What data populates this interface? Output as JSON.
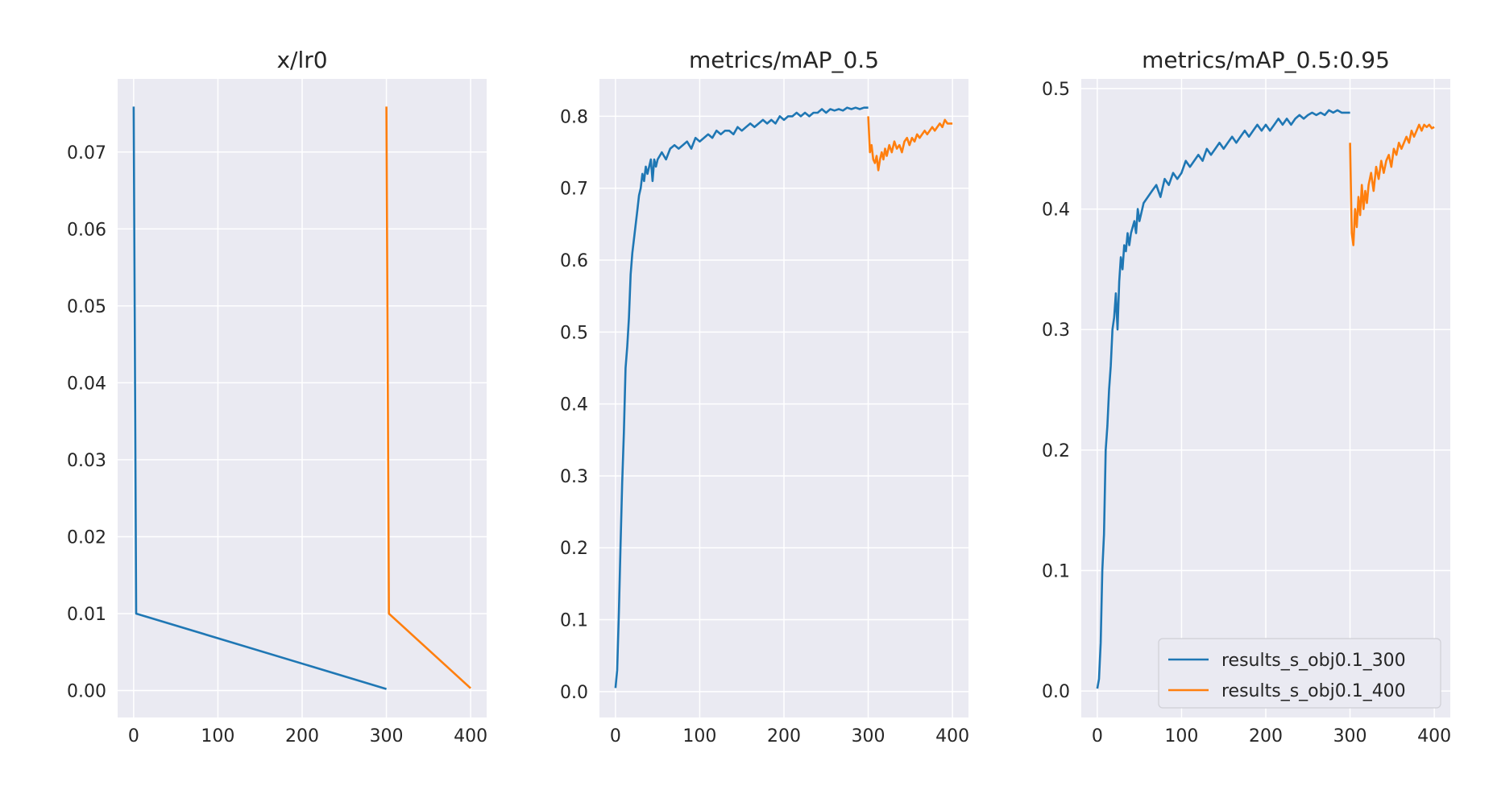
{
  "chart_data": [
    {
      "type": "line",
      "title": "x/lr0",
      "xlabel": "",
      "ylabel": "",
      "xlim": [
        -19,
        419
      ],
      "ylim": [
        -0.0035,
        0.0795
      ],
      "xticks": [
        0,
        100,
        200,
        300,
        400
      ],
      "yticks": [
        0.0,
        0.01,
        0.02,
        0.03,
        0.04,
        0.05,
        0.06,
        0.07
      ],
      "ytick_labels": [
        "0.00",
        "0.01",
        "0.02",
        "0.03",
        "0.04",
        "0.05",
        "0.06",
        "0.07"
      ],
      "grid": true,
      "legend": false,
      "series": [
        {
          "name": "results_s_obj0.1_300",
          "color": "#1f77b4",
          "x": [
            0,
            3,
            300
          ],
          "y": [
            0.0759,
            0.01,
            0.0002
          ]
        },
        {
          "name": "results_s_obj0.1_400",
          "color": "#ff7f0e",
          "x": [
            300,
            303,
            400
          ],
          "y": [
            0.0759,
            0.01,
            0.0003
          ]
        }
      ]
    },
    {
      "type": "line",
      "title": "metrics/mAP_0.5",
      "xlabel": "",
      "ylabel": "",
      "xlim": [
        -19,
        419
      ],
      "ylim": [
        -0.036,
        0.852
      ],
      "xticks": [
        0,
        100,
        200,
        300,
        400
      ],
      "yticks": [
        0.0,
        0.1,
        0.2,
        0.3,
        0.4,
        0.5,
        0.6,
        0.7,
        0.8
      ],
      "ytick_labels": [
        "0.0",
        "0.1",
        "0.2",
        "0.3",
        "0.4",
        "0.5",
        "0.6",
        "0.7",
        "0.8"
      ],
      "grid": true,
      "legend": false,
      "series": [
        {
          "name": "results_s_obj0.1_300",
          "color": "#1f77b4",
          "x": [
            0,
            2,
            4,
            6,
            8,
            10,
            12,
            14,
            16,
            18,
            20,
            22,
            24,
            26,
            28,
            30,
            32,
            34,
            36,
            38,
            40,
            42,
            44,
            46,
            48,
            50,
            55,
            60,
            65,
            70,
            75,
            80,
            85,
            90,
            95,
            100,
            105,
            110,
            115,
            120,
            125,
            130,
            135,
            140,
            145,
            150,
            155,
            160,
            165,
            170,
            175,
            180,
            185,
            190,
            195,
            200,
            205,
            210,
            215,
            220,
            225,
            230,
            235,
            240,
            245,
            250,
            255,
            260,
            265,
            270,
            275,
            280,
            285,
            290,
            295,
            300
          ],
          "y": [
            0.005,
            0.03,
            0.11,
            0.2,
            0.29,
            0.36,
            0.45,
            0.48,
            0.52,
            0.58,
            0.61,
            0.63,
            0.65,
            0.67,
            0.69,
            0.7,
            0.72,
            0.71,
            0.73,
            0.72,
            0.73,
            0.74,
            0.71,
            0.74,
            0.73,
            0.74,
            0.75,
            0.74,
            0.755,
            0.76,
            0.755,
            0.76,
            0.765,
            0.755,
            0.77,
            0.765,
            0.77,
            0.775,
            0.77,
            0.78,
            0.775,
            0.78,
            0.78,
            0.775,
            0.785,
            0.78,
            0.785,
            0.79,
            0.785,
            0.79,
            0.795,
            0.79,
            0.795,
            0.79,
            0.8,
            0.795,
            0.8,
            0.8,
            0.805,
            0.8,
            0.805,
            0.8,
            0.805,
            0.805,
            0.81,
            0.805,
            0.81,
            0.808,
            0.81,
            0.808,
            0.812,
            0.81,
            0.812,
            0.81,
            0.812,
            0.812
          ]
        },
        {
          "name": "results_s_obj0.1_400",
          "color": "#ff7f0e",
          "x": [
            300,
            302,
            304,
            306,
            308,
            310,
            312,
            314,
            316,
            318,
            320,
            322,
            325,
            328,
            331,
            334,
            337,
            340,
            343,
            346,
            349,
            352,
            355,
            358,
            361,
            364,
            367,
            370,
            373,
            376,
            379,
            382,
            385,
            388,
            391,
            394,
            397,
            400
          ],
          "y": [
            0.8,
            0.75,
            0.76,
            0.74,
            0.735,
            0.745,
            0.725,
            0.74,
            0.75,
            0.74,
            0.755,
            0.745,
            0.76,
            0.75,
            0.765,
            0.755,
            0.76,
            0.75,
            0.765,
            0.77,
            0.76,
            0.77,
            0.765,
            0.775,
            0.77,
            0.775,
            0.78,
            0.775,
            0.78,
            0.785,
            0.78,
            0.785,
            0.79,
            0.785,
            0.795,
            0.79,
            0.79,
            0.79
          ]
        }
      ]
    },
    {
      "type": "line",
      "title": "metrics/mAP_0.5:0.95",
      "xlabel": "",
      "ylabel": "",
      "xlim": [
        -19,
        419
      ],
      "ylim": [
        -0.022,
        0.508
      ],
      "xticks": [
        0,
        100,
        200,
        300,
        400
      ],
      "yticks": [
        0.0,
        0.1,
        0.2,
        0.3,
        0.4,
        0.5
      ],
      "ytick_labels": [
        "0.0",
        "0.1",
        "0.2",
        "0.3",
        "0.4",
        "0.5"
      ],
      "grid": true,
      "legend": true,
      "legend_loc": "lower right",
      "series": [
        {
          "name": "results_s_obj0.1_300",
          "color": "#1f77b4",
          "x": [
            0,
            2,
            4,
            6,
            8,
            10,
            12,
            14,
            16,
            18,
            20,
            22,
            24,
            26,
            28,
            30,
            32,
            34,
            36,
            38,
            40,
            42,
            44,
            46,
            48,
            50,
            55,
            60,
            65,
            70,
            75,
            80,
            85,
            90,
            95,
            100,
            105,
            110,
            115,
            120,
            125,
            130,
            135,
            140,
            145,
            150,
            155,
            160,
            165,
            170,
            175,
            180,
            185,
            190,
            195,
            200,
            205,
            210,
            215,
            220,
            225,
            230,
            235,
            240,
            245,
            250,
            255,
            260,
            265,
            270,
            275,
            280,
            285,
            290,
            295,
            300
          ],
          "y": [
            0.002,
            0.01,
            0.04,
            0.1,
            0.13,
            0.2,
            0.22,
            0.25,
            0.27,
            0.3,
            0.31,
            0.33,
            0.3,
            0.34,
            0.36,
            0.35,
            0.37,
            0.365,
            0.38,
            0.37,
            0.38,
            0.385,
            0.39,
            0.38,
            0.4,
            0.39,
            0.405,
            0.41,
            0.415,
            0.42,
            0.41,
            0.425,
            0.42,
            0.43,
            0.425,
            0.43,
            0.44,
            0.435,
            0.44,
            0.445,
            0.44,
            0.45,
            0.445,
            0.45,
            0.455,
            0.45,
            0.455,
            0.46,
            0.455,
            0.46,
            0.465,
            0.46,
            0.465,
            0.47,
            0.465,
            0.47,
            0.465,
            0.47,
            0.475,
            0.47,
            0.475,
            0.47,
            0.475,
            0.478,
            0.475,
            0.478,
            0.48,
            0.478,
            0.48,
            0.478,
            0.482,
            0.48,
            0.482,
            0.48,
            0.48,
            0.48
          ]
        },
        {
          "name": "results_s_obj0.1_400",
          "color": "#ff7f0e",
          "x": [
            300,
            302,
            304,
            306,
            308,
            310,
            312,
            314,
            316,
            318,
            320,
            322,
            325,
            328,
            331,
            334,
            337,
            340,
            343,
            346,
            349,
            352,
            355,
            358,
            361,
            364,
            367,
            370,
            373,
            376,
            379,
            382,
            385,
            388,
            391,
            394,
            397,
            400
          ],
          "y": [
            0.455,
            0.38,
            0.37,
            0.4,
            0.385,
            0.41,
            0.395,
            0.42,
            0.4,
            0.415,
            0.405,
            0.42,
            0.43,
            0.415,
            0.435,
            0.425,
            0.44,
            0.43,
            0.44,
            0.445,
            0.435,
            0.45,
            0.445,
            0.455,
            0.45,
            0.455,
            0.46,
            0.455,
            0.465,
            0.46,
            0.465,
            0.47,
            0.465,
            0.47,
            0.468,
            0.47,
            0.467,
            0.468
          ]
        }
      ]
    }
  ]
}
